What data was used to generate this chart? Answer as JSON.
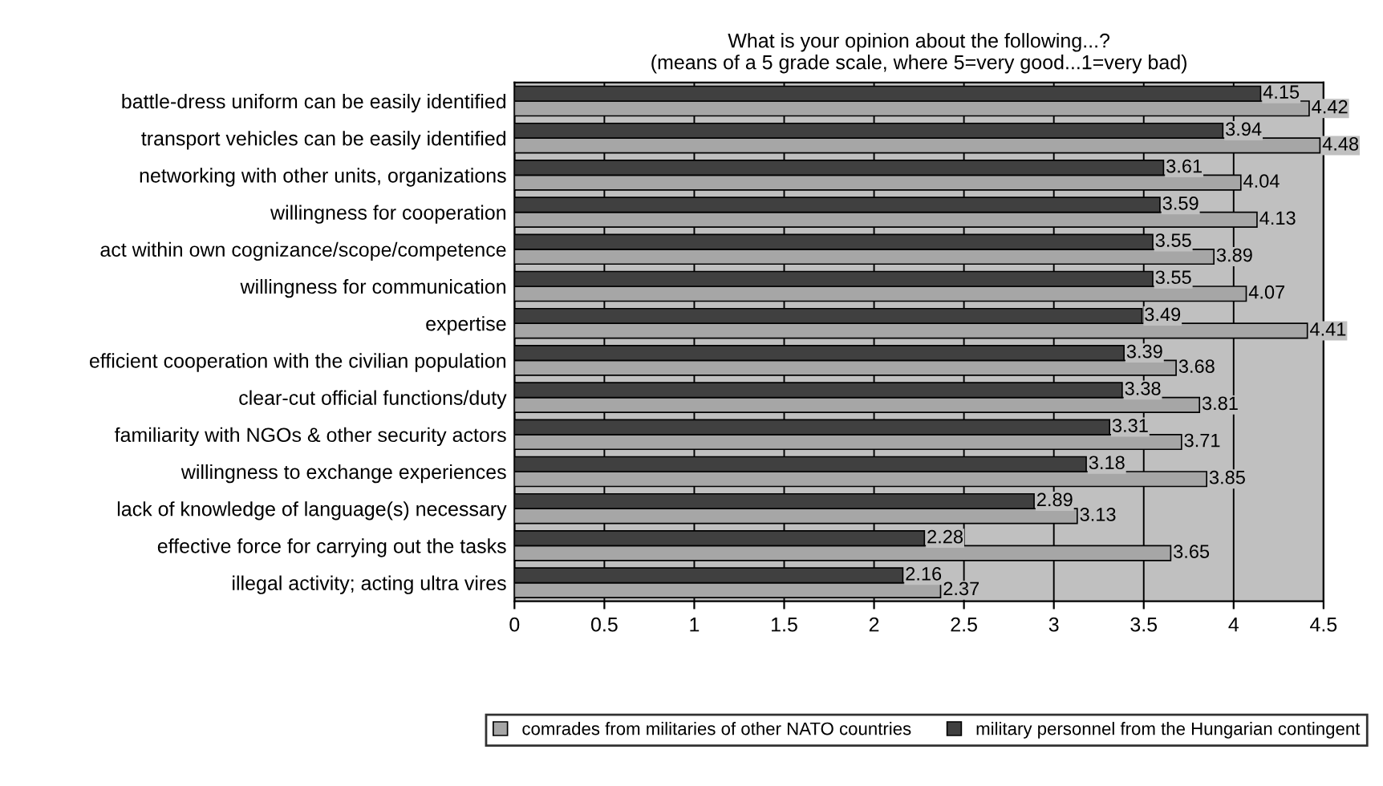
{
  "chart_data": {
    "type": "bar",
    "orientation": "horizontal",
    "title": "What is your opinion about the following...?\n(means of a 5 grade scale, where 5=very good...1=very bad)",
    "categories": [
      "battle-dress uniform can be easily identified",
      "transport vehicles can be easily identified",
      "networking with other units, organizations",
      "willingness for cooperation",
      "act within own cognizance/scope/competence",
      "willingness for communication",
      "expertise",
      "efficient cooperation with the civilian population",
      "clear-cut official functions/duty",
      "familiarity with NGOs & other security actors",
      "willingness to exchange experiences",
      "lack of knowledge of language(s) necessary",
      "effective force for carrying out the tasks",
      "illegal activity; acting ultra vires"
    ],
    "series": [
      {
        "name": "comrades from militaries of other NATO countries",
        "color": "#a6a6a6",
        "values": [
          4.42,
          4.48,
          4.04,
          4.13,
          3.89,
          4.07,
          4.41,
          3.68,
          3.81,
          3.71,
          3.85,
          3.13,
          3.65,
          2.37
        ]
      },
      {
        "name": "military personnel from the Hungarian contingent",
        "color": "#404040",
        "values": [
          4.15,
          3.94,
          3.61,
          3.59,
          3.55,
          3.55,
          3.49,
          3.39,
          3.38,
          3.31,
          3.18,
          2.89,
          2.28,
          2.16
        ]
      }
    ],
    "xlim": [
      0,
      4.5
    ],
    "xticks": [
      0,
      0.5,
      1,
      1.5,
      2,
      2.5,
      3,
      3.5,
      4,
      4.5
    ],
    "grid": "x",
    "legend": "bottom",
    "data_labels": true
  }
}
